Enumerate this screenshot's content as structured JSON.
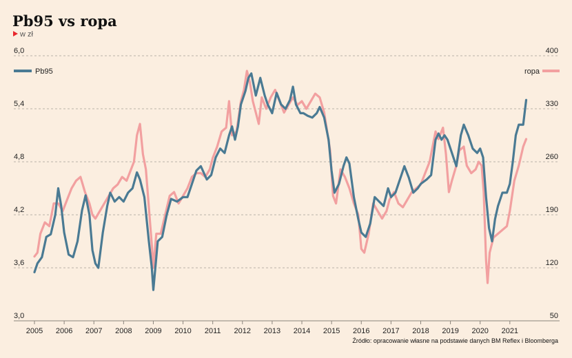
{
  "header": {
    "title": "Pb95 vs ropa",
    "unit": "w zł"
  },
  "source": "Źródło: opracowanie własne na podstawie danych BM Reflex i Bloomberga",
  "colors": {
    "background": "#fbeee0",
    "pb95": "#4a7a93",
    "ropa": "#f2a0a0",
    "accent": "#e8262c"
  },
  "chart_data": {
    "type": "line",
    "title": "Pb95 vs ropa",
    "subtitle": "w zł",
    "grid": true,
    "legend_placement": "top-left and top-right",
    "x_ticks": [
      "2005",
      "2006",
      "2007",
      "2008",
      "2009",
      "2010",
      "2011",
      "2012",
      "2013",
      "2014",
      "2015",
      "2016",
      "2017",
      "2018",
      "2019",
      "2020",
      "2021"
    ],
    "xlim": [
      2005.0,
      2021.7
    ],
    "y_left": {
      "ticks": [
        "6,0",
        "5,4",
        "4,8",
        "4,2",
        "3,6",
        "3,0"
      ],
      "range": [
        3.0,
        6.0
      ]
    },
    "y_right": {
      "ticks": [
        "400",
        "330",
        "260",
        "190",
        "120",
        "50"
      ],
      "range": [
        50,
        400
      ]
    },
    "series": [
      {
        "name": "Pb95",
        "axis": "left",
        "color": "#4a7a93",
        "points": [
          [
            2005.0,
            3.55
          ],
          [
            2005.1,
            3.65
          ],
          [
            2005.25,
            3.72
          ],
          [
            2005.4,
            3.95
          ],
          [
            2005.55,
            3.98
          ],
          [
            2005.7,
            4.2
          ],
          [
            2005.8,
            4.5
          ],
          [
            2005.9,
            4.3
          ],
          [
            2006.0,
            4.0
          ],
          [
            2006.15,
            3.75
          ],
          [
            2006.3,
            3.72
          ],
          [
            2006.45,
            3.9
          ],
          [
            2006.6,
            4.25
          ],
          [
            2006.72,
            4.42
          ],
          [
            2006.85,
            4.2
          ],
          [
            2006.95,
            3.8
          ],
          [
            2007.05,
            3.65
          ],
          [
            2007.15,
            3.6
          ],
          [
            2007.3,
            4.0
          ],
          [
            2007.45,
            4.3
          ],
          [
            2007.55,
            4.45
          ],
          [
            2007.7,
            4.35
          ],
          [
            2007.85,
            4.4
          ],
          [
            2008.0,
            4.35
          ],
          [
            2008.15,
            4.45
          ],
          [
            2008.3,
            4.5
          ],
          [
            2008.45,
            4.68
          ],
          [
            2008.55,
            4.6
          ],
          [
            2008.7,
            4.4
          ],
          [
            2008.85,
            3.9
          ],
          [
            2008.95,
            3.6
          ],
          [
            2009.0,
            3.35
          ],
          [
            2009.15,
            3.9
          ],
          [
            2009.3,
            3.95
          ],
          [
            2009.45,
            4.2
          ],
          [
            2009.6,
            4.38
          ],
          [
            2009.8,
            4.35
          ],
          [
            2010.0,
            4.4
          ],
          [
            2010.15,
            4.4
          ],
          [
            2010.3,
            4.55
          ],
          [
            2010.45,
            4.7
          ],
          [
            2010.6,
            4.75
          ],
          [
            2010.8,
            4.6
          ],
          [
            2010.95,
            4.65
          ],
          [
            2011.1,
            4.85
          ],
          [
            2011.25,
            4.95
          ],
          [
            2011.4,
            4.9
          ],
          [
            2011.55,
            5.1
          ],
          [
            2011.65,
            5.2
          ],
          [
            2011.75,
            5.05
          ],
          [
            2011.85,
            5.2
          ],
          [
            2011.95,
            5.45
          ],
          [
            2012.1,
            5.6
          ],
          [
            2012.2,
            5.75
          ],
          [
            2012.3,
            5.8
          ],
          [
            2012.45,
            5.55
          ],
          [
            2012.6,
            5.75
          ],
          [
            2012.75,
            5.55
          ],
          [
            2012.85,
            5.45
          ],
          [
            2013.0,
            5.35
          ],
          [
            2013.15,
            5.58
          ],
          [
            2013.3,
            5.45
          ],
          [
            2013.45,
            5.4
          ],
          [
            2013.6,
            5.5
          ],
          [
            2013.7,
            5.65
          ],
          [
            2013.8,
            5.45
          ],
          [
            2013.95,
            5.35
          ],
          [
            2014.05,
            5.35
          ],
          [
            2014.2,
            5.32
          ],
          [
            2014.35,
            5.3
          ],
          [
            2014.5,
            5.35
          ],
          [
            2014.6,
            5.42
          ],
          [
            2014.75,
            5.3
          ],
          [
            2014.9,
            5.05
          ],
          [
            2015.0,
            4.7
          ],
          [
            2015.1,
            4.45
          ],
          [
            2015.25,
            4.55
          ],
          [
            2015.4,
            4.75
          ],
          [
            2015.5,
            4.85
          ],
          [
            2015.6,
            4.78
          ],
          [
            2015.75,
            4.4
          ],
          [
            2015.9,
            4.15
          ],
          [
            2016.0,
            4.0
          ],
          [
            2016.15,
            3.95
          ],
          [
            2016.3,
            4.1
          ],
          [
            2016.45,
            4.4
          ],
          [
            2016.6,
            4.35
          ],
          [
            2016.75,
            4.3
          ],
          [
            2016.9,
            4.5
          ],
          [
            2017.0,
            4.4
          ],
          [
            2017.15,
            4.45
          ],
          [
            2017.3,
            4.6
          ],
          [
            2017.45,
            4.75
          ],
          [
            2017.6,
            4.62
          ],
          [
            2017.75,
            4.45
          ],
          [
            2017.9,
            4.5
          ],
          [
            2018.0,
            4.55
          ],
          [
            2018.2,
            4.6
          ],
          [
            2018.35,
            4.65
          ],
          [
            2018.5,
            5.05
          ],
          [
            2018.6,
            5.12
          ],
          [
            2018.7,
            5.05
          ],
          [
            2018.8,
            5.1
          ],
          [
            2018.9,
            5.05
          ],
          [
            2019.0,
            4.95
          ],
          [
            2019.1,
            4.85
          ],
          [
            2019.2,
            4.75
          ],
          [
            2019.35,
            5.1
          ],
          [
            2019.45,
            5.22
          ],
          [
            2019.6,
            5.1
          ],
          [
            2019.75,
            4.95
          ],
          [
            2019.9,
            4.9
          ],
          [
            2020.0,
            4.95
          ],
          [
            2020.1,
            4.85
          ],
          [
            2020.2,
            4.4
          ],
          [
            2020.3,
            4.05
          ],
          [
            2020.4,
            3.9
          ],
          [
            2020.5,
            4.15
          ],
          [
            2020.6,
            4.3
          ],
          [
            2020.75,
            4.45
          ],
          [
            2020.9,
            4.45
          ],
          [
            2021.0,
            4.55
          ],
          [
            2021.1,
            4.8
          ],
          [
            2021.2,
            5.1
          ],
          [
            2021.3,
            5.22
          ],
          [
            2021.45,
            5.22
          ],
          [
            2021.55,
            5.5
          ]
        ]
      },
      {
        "name": "ropa",
        "axis": "right",
        "color": "#f2a0a0",
        "points": [
          [
            2005.0,
            135
          ],
          [
            2005.1,
            140
          ],
          [
            2005.2,
            165
          ],
          [
            2005.35,
            180
          ],
          [
            2005.5,
            175
          ],
          [
            2005.65,
            205
          ],
          [
            2005.8,
            205
          ],
          [
            2005.95,
            195
          ],
          [
            2006.1,
            210
          ],
          [
            2006.25,
            225
          ],
          [
            2006.4,
            235
          ],
          [
            2006.55,
            240
          ],
          [
            2006.7,
            220
          ],
          [
            2006.85,
            205
          ],
          [
            2006.95,
            190
          ],
          [
            2007.05,
            185
          ],
          [
            2007.2,
            195
          ],
          [
            2007.35,
            205
          ],
          [
            2007.5,
            215
          ],
          [
            2007.65,
            225
          ],
          [
            2007.8,
            230
          ],
          [
            2007.95,
            240
          ],
          [
            2008.1,
            235
          ],
          [
            2008.2,
            245
          ],
          [
            2008.35,
            260
          ],
          [
            2008.45,
            295
          ],
          [
            2008.55,
            310
          ],
          [
            2008.65,
            270
          ],
          [
            2008.75,
            250
          ],
          [
            2008.85,
            200
          ],
          [
            2008.95,
            150
          ],
          [
            2009.0,
            120
          ],
          [
            2009.1,
            165
          ],
          [
            2009.25,
            165
          ],
          [
            2009.4,
            190
          ],
          [
            2009.55,
            215
          ],
          [
            2009.7,
            220
          ],
          [
            2009.85,
            205
          ],
          [
            2010.0,
            215
          ],
          [
            2010.15,
            225
          ],
          [
            2010.3,
            240
          ],
          [
            2010.45,
            245
          ],
          [
            2010.6,
            245
          ],
          [
            2010.75,
            240
          ],
          [
            2010.9,
            250
          ],
          [
            2011.0,
            265
          ],
          [
            2011.15,
            280
          ],
          [
            2011.3,
            300
          ],
          [
            2011.45,
            305
          ],
          [
            2011.55,
            340
          ],
          [
            2011.65,
            295
          ],
          [
            2011.8,
            300
          ],
          [
            2011.95,
            340
          ],
          [
            2012.05,
            355
          ],
          [
            2012.15,
            380
          ],
          [
            2012.25,
            365
          ],
          [
            2012.35,
            340
          ],
          [
            2012.45,
            325
          ],
          [
            2012.55,
            310
          ],
          [
            2012.65,
            345
          ],
          [
            2012.8,
            330
          ],
          [
            2012.95,
            345
          ],
          [
            2013.1,
            355
          ],
          [
            2013.25,
            340
          ],
          [
            2013.4,
            325
          ],
          [
            2013.55,
            335
          ],
          [
            2013.7,
            345
          ],
          [
            2013.85,
            335
          ],
          [
            2014.0,
            340
          ],
          [
            2014.15,
            330
          ],
          [
            2014.3,
            340
          ],
          [
            2014.45,
            350
          ],
          [
            2014.6,
            345
          ],
          [
            2014.75,
            325
          ],
          [
            2014.85,
            300
          ],
          [
            2014.95,
            275
          ],
          [
            2015.05,
            215
          ],
          [
            2015.15,
            205
          ],
          [
            2015.3,
            250
          ],
          [
            2015.45,
            240
          ],
          [
            2015.6,
            225
          ],
          [
            2015.75,
            205
          ],
          [
            2015.9,
            190
          ],
          [
            2016.0,
            145
          ],
          [
            2016.1,
            140
          ],
          [
            2016.25,
            165
          ],
          [
            2016.4,
            205
          ],
          [
            2016.55,
            195
          ],
          [
            2016.7,
            185
          ],
          [
            2016.85,
            195
          ],
          [
            2016.95,
            210
          ],
          [
            2017.1,
            220
          ],
          [
            2017.25,
            205
          ],
          [
            2017.4,
            200
          ],
          [
            2017.55,
            210
          ],
          [
            2017.7,
            220
          ],
          [
            2017.85,
            225
          ],
          [
            2018.0,
            230
          ],
          [
            2018.15,
            245
          ],
          [
            2018.3,
            260
          ],
          [
            2018.4,
            280
          ],
          [
            2018.5,
            300
          ],
          [
            2018.6,
            290
          ],
          [
            2018.75,
            305
          ],
          [
            2018.85,
            270
          ],
          [
            2018.95,
            220
          ],
          [
            2019.05,
            235
          ],
          [
            2019.2,
            255
          ],
          [
            2019.3,
            275
          ],
          [
            2019.45,
            280
          ],
          [
            2019.55,
            255
          ],
          [
            2019.7,
            245
          ],
          [
            2019.85,
            250
          ],
          [
            2019.95,
            260
          ],
          [
            2020.05,
            255
          ],
          [
            2020.12,
            220
          ],
          [
            2020.2,
            130
          ],
          [
            2020.25,
            100
          ],
          [
            2020.32,
            140
          ],
          [
            2020.45,
            160
          ],
          [
            2020.6,
            165
          ],
          [
            2020.75,
            170
          ],
          [
            2020.9,
            175
          ],
          [
            2021.0,
            195
          ],
          [
            2021.15,
            235
          ],
          [
            2021.3,
            255
          ],
          [
            2021.45,
            280
          ],
          [
            2021.55,
            290
          ]
        ]
      }
    ]
  }
}
